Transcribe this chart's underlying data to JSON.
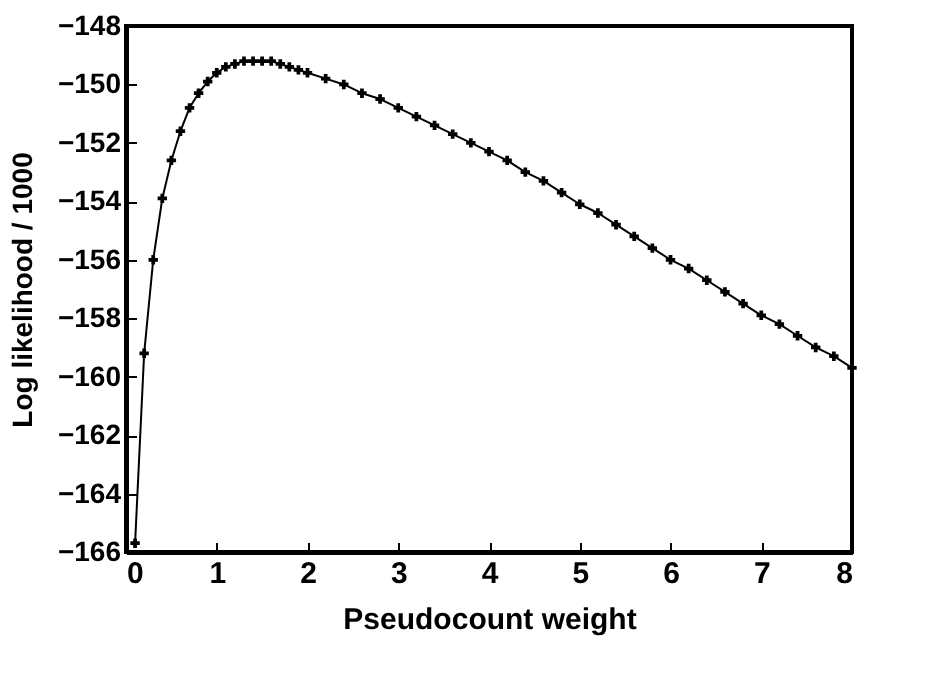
{
  "chart_data": {
    "type": "line",
    "xlabel": "Pseudocount weight",
    "ylabel": "Log likelihood / 1000",
    "marker": "cross",
    "line_style": "solid",
    "grid": false,
    "xlim": [
      0,
      8
    ],
    "xticks": [
      0,
      1,
      2,
      3,
      4,
      5,
      6,
      7,
      8
    ],
    "ylim": [
      -166,
      -148
    ],
    "yticks": [
      -166,
      -164,
      -162,
      -160,
      -158,
      -156,
      -154,
      -152,
      -150,
      -148
    ],
    "series": [
      {
        "color": "#000000",
        "x": [
          0.1,
          0.2,
          0.3,
          0.4,
          0.5,
          0.6,
          0.7,
          0.8,
          0.9,
          1.0,
          1.1,
          1.2,
          1.3,
          1.4,
          1.5,
          1.6,
          1.7,
          1.8,
          1.9,
          2.0,
          2.2,
          2.4,
          2.6,
          2.8,
          3.0,
          3.2,
          3.4,
          3.6,
          3.8,
          4.0,
          4.2,
          4.4,
          4.6,
          4.8,
          5.0,
          5.2,
          5.4,
          5.6,
          5.8,
          6.0,
          6.2,
          6.4,
          6.6,
          6.8,
          7.0,
          7.2,
          7.4,
          7.6,
          7.8,
          8.0
        ],
        "values": [
          -165.7,
          -159.2,
          -156.0,
          -153.9,
          -152.6,
          -151.6,
          -150.8,
          -150.3,
          -149.9,
          -149.6,
          -149.4,
          -149.3,
          -149.2,
          -149.2,
          -149.2,
          -149.2,
          -149.3,
          -149.4,
          -149.5,
          -149.6,
          -149.8,
          -150.0,
          -150.3,
          -150.5,
          -150.8,
          -151.1,
          -151.4,
          -151.7,
          -152.0,
          -152.3,
          -152.6,
          -153.0,
          -153.3,
          -153.7,
          -154.1,
          -154.4,
          -154.8,
          -155.2,
          -155.6,
          -156.0,
          -156.3,
          -156.7,
          -157.1,
          -157.5,
          -157.9,
          -158.2,
          -158.6,
          -159.0,
          -159.3,
          -159.7
        ]
      }
    ]
  }
}
